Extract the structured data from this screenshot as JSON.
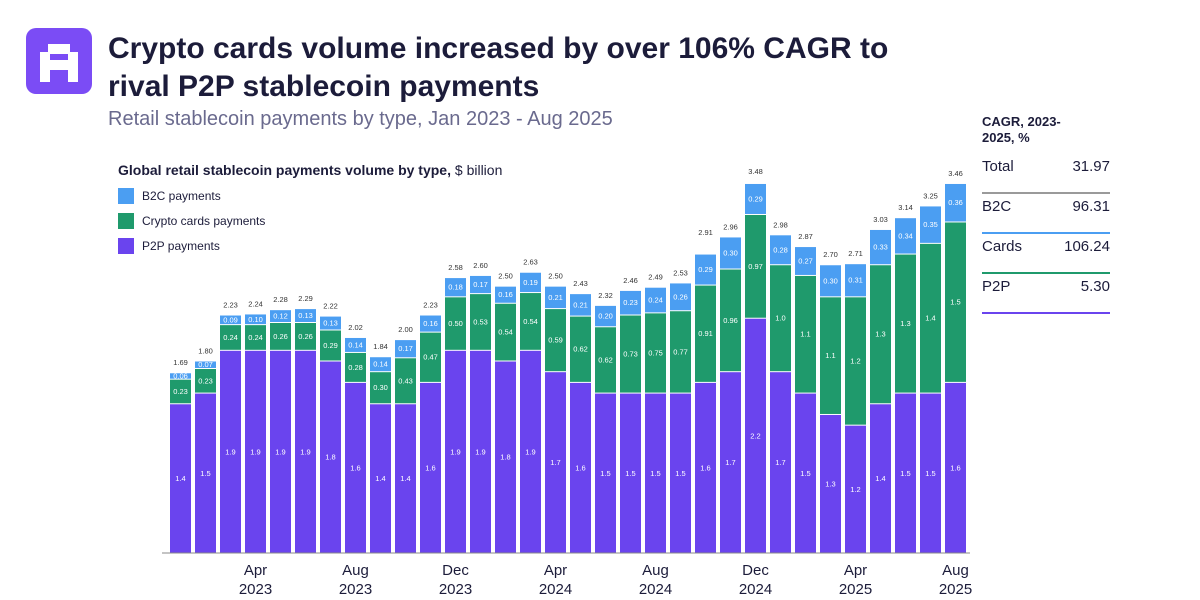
{
  "chart_data": {
    "type": "stacked_bar",
    "title": "Crypto cards volume increased by over 106% CAGR to rival P2P stablecoin payments",
    "subtitle": "Retail stablecoin payments by type, Jan 2023 - Aug 2025",
    "chart_title": "Global retail stablecoin payments volume by type,",
    "chart_unit": "$ billion",
    "categories": [
      null,
      null,
      null,
      "Apr 2023",
      null,
      null,
      null,
      "Aug 2023",
      null,
      null,
      null,
      "Dec 2023",
      null,
      null,
      null,
      "Apr 2024",
      null,
      null,
      null,
      "Aug 2024",
      null,
      null,
      null,
      "Dec 2024",
      null,
      null,
      null,
      "Apr 2025",
      null,
      null,
      null,
      "Aug 2025"
    ],
    "ylim": [
      0,
      3.6
    ],
    "series": [
      {
        "name": "B2C payments",
        "color": "#4b9ef2",
        "values": [
          0.06,
          0.07,
          0.09,
          0.1,
          0.12,
          0.13,
          0.13,
          0.14,
          0.14,
          0.17,
          0.16,
          0.18,
          0.17,
          0.16,
          0.19,
          0.21,
          0.21,
          0.2,
          0.23,
          0.24,
          0.26,
          0.29,
          0.3,
          0.29,
          0.28,
          0.27,
          0.3,
          0.31,
          0.33,
          0.34,
          0.35,
          0.36
        ],
        "value_labels": [
          "0.06",
          "0.07",
          "0.09",
          "0.10",
          "0.12",
          "0.13",
          "0.13",
          "0.14",
          "0.14",
          "0.17",
          "0.16",
          "0.18",
          "0.17",
          "0.16",
          "0.19",
          "0.21",
          "0.21",
          "0.20",
          "0.23",
          "0.24",
          "0.26",
          "0.29",
          "0.30",
          "0.29",
          "0.28",
          "0.27",
          "0.30",
          "0.31",
          "0.33",
          "0.34",
          "0.35",
          "0.36"
        ]
      },
      {
        "name": "Crypto cards payments",
        "color": "#1f9a6c",
        "values": [
          0.23,
          0.23,
          0.24,
          0.24,
          0.26,
          0.26,
          0.29,
          0.28,
          0.3,
          0.43,
          0.47,
          0.5,
          0.53,
          0.54,
          0.54,
          0.59,
          0.62,
          0.62,
          0.73,
          0.75,
          0.77,
          0.91,
          0.96,
          0.97,
          1.0,
          1.1,
          1.1,
          1.2,
          1.3,
          1.3,
          1.4,
          1.5
        ],
        "value_labels": [
          "0.23",
          "0.23",
          "0.24",
          "0.24",
          "0.26",
          "0.26",
          "0.29",
          "0.28",
          "0.30",
          "0.43",
          "0.47",
          "0.50",
          "0.53",
          "0.54",
          "0.54",
          "0.59",
          "0.62",
          "0.62",
          "0.73",
          "0.75",
          "0.77",
          "0.91",
          "0.96",
          "0.97",
          "1.0",
          "1.1",
          "1.1",
          "1.2",
          "1.3",
          "1.3",
          "1.4",
          "1.5"
        ]
      },
      {
        "name": "P2P payments",
        "color": "#6a44ee",
        "values": [
          1.4,
          1.5,
          1.9,
          1.9,
          1.9,
          1.9,
          1.8,
          1.6,
          1.4,
          1.4,
          1.6,
          1.9,
          1.9,
          1.8,
          1.9,
          1.7,
          1.6,
          1.5,
          1.5,
          1.5,
          1.5,
          1.6,
          1.7,
          2.2,
          1.7,
          1.5,
          1.3,
          1.2,
          1.4,
          1.5,
          1.5,
          1.6
        ]
      }
    ],
    "totals": {
      "values": [
        1.69,
        1.8,
        2.23,
        2.24,
        2.28,
        2.29,
        2.22,
        2.02,
        1.84,
        2.0,
        2.23,
        2.58,
        2.6,
        2.5,
        2.63,
        2.5,
        2.43,
        2.32,
        2.46,
        2.49,
        2.53,
        2.91,
        2.96,
        3.48,
        2.98,
        2.87,
        2.7,
        2.71,
        3.03,
        3.14,
        3.25,
        3.46
      ],
      "labels": [
        "1.69",
        "1.80",
        "2.23",
        "2.24",
        "2.28",
        "2.29",
        "2.22",
        "2.02",
        "1.84",
        "2.00",
        "2.23",
        "2.58",
        "2.60",
        "2.50",
        "2.63",
        "2.50",
        "2.43",
        "2.32",
        "2.46",
        "2.49",
        "2.53",
        "2.91",
        "2.96",
        "3.48",
        "2.98",
        "2.87",
        "2.70",
        "2.71",
        "3.03",
        "3.14",
        "3.25",
        "3.46"
      ]
    }
  },
  "cagr": {
    "title": "CAGR, 2023-2025, %",
    "rows": [
      {
        "label": "Total",
        "value": "31.97",
        "color": "#9a9a9a"
      },
      {
        "label": "B2C",
        "value": "96.31",
        "color": "#4b9ef2"
      },
      {
        "label": "Cards",
        "value": "106.24",
        "color": "#1f9a6c"
      },
      {
        "label": "P2P",
        "value": "5.30",
        "color": "#6a44ee"
      }
    ]
  }
}
